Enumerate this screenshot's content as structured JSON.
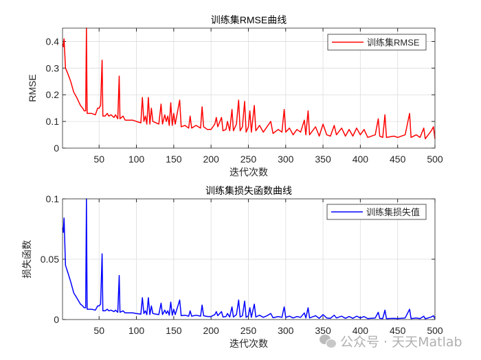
{
  "chart_data": [
    {
      "type": "line",
      "title": "训练集RMSE曲线",
      "xlabel": "迭代次数",
      "ylabel": "RMSE",
      "xlim": [
        1,
        500
      ],
      "ylim": [
        0,
        0.45
      ],
      "xticks": [
        50,
        100,
        150,
        200,
        250,
        300,
        350,
        400,
        450,
        500
      ],
      "yticks": [
        0,
        0.1,
        0.2,
        0.3,
        0.4
      ],
      "ytick_labels": [
        "0",
        "0.1",
        "0.2",
        "0.3",
        "0.4"
      ],
      "grid": true,
      "legend": "top-right",
      "series": [
        {
          "name": "训练集RMSE",
          "color": "#ff0000",
          "x": [
            1,
            2,
            3,
            5,
            8,
            12,
            16,
            20,
            25,
            28,
            30,
            32,
            33,
            34,
            36,
            40,
            45,
            48,
            50,
            52,
            54,
            55,
            58,
            61,
            63,
            66,
            70,
            72,
            75,
            77,
            78,
            82,
            85,
            95,
            100,
            106,
            108,
            110,
            112,
            114,
            116,
            118,
            120,
            122,
            126,
            130,
            133,
            135,
            138,
            140,
            142,
            144,
            146,
            148,
            150,
            152,
            158,
            160,
            165,
            170,
            172,
            174,
            180,
            186,
            188,
            190,
            195,
            200,
            205,
            207,
            209,
            214,
            216,
            220,
            222,
            225,
            228,
            230,
            234,
            237,
            239,
            242,
            245,
            247,
            250,
            252,
            254,
            258,
            260,
            265,
            270,
            275,
            280,
            283,
            290,
            295,
            298,
            300,
            305,
            310,
            315,
            320,
            325,
            327,
            330,
            332,
            340,
            345,
            350,
            355,
            360,
            365,
            368,
            375,
            380,
            385,
            390,
            395,
            400,
            405,
            410,
            420,
            424,
            426,
            430,
            433,
            435,
            445,
            450,
            460,
            466,
            468,
            475,
            480,
            485,
            487,
            495,
            498,
            500
          ],
          "y": [
            0.39,
            0.38,
            0.41,
            0.3,
            0.28,
            0.25,
            0.21,
            0.19,
            0.16,
            0.15,
            0.14,
            0.14,
            0.45,
            0.13,
            0.13,
            0.13,
            0.125,
            0.15,
            0.15,
            0.16,
            0.33,
            0.12,
            0.12,
            0.13,
            0.12,
            0.125,
            0.115,
            0.125,
            0.11,
            0.27,
            0.11,
            0.12,
            0.105,
            0.105,
            0.1,
            0.095,
            0.19,
            0.1,
            0.12,
            0.09,
            0.19,
            0.09,
            0.15,
            0.1,
            0.095,
            0.09,
            0.165,
            0.09,
            0.125,
            0.1,
            0.12,
            0.085,
            0.17,
            0.085,
            0.13,
            0.09,
            0.18,
            0.08,
            0.085,
            0.075,
            0.12,
            0.075,
            0.085,
            0.075,
            0.155,
            0.08,
            0.07,
            0.07,
            0.09,
            0.115,
            0.08,
            0.115,
            0.065,
            0.07,
            0.1,
            0.065,
            0.145,
            0.065,
            0.09,
            0.18,
            0.065,
            0.08,
            0.175,
            0.06,
            0.08,
            0.14,
            0.06,
            0.16,
            0.065,
            0.085,
            0.06,
            0.08,
            0.1,
            0.055,
            0.07,
            0.06,
            0.145,
            0.06,
            0.075,
            0.05,
            0.07,
            0.06,
            0.105,
            0.05,
            0.14,
            0.05,
            0.08,
            0.045,
            0.09,
            0.05,
            0.045,
            0.085,
            0.05,
            0.075,
            0.045,
            0.07,
            0.045,
            0.075,
            0.05,
            0.07,
            0.04,
            0.05,
            0.11,
            0.045,
            0.04,
            0.125,
            0.04,
            0.045,
            0.04,
            0.05,
            0.13,
            0.04,
            0.05,
            0.04,
            0.075,
            0.035,
            0.065,
            0.08,
            0.035
          ]
        }
      ]
    },
    {
      "type": "line",
      "title": "训练集损失函数曲线",
      "xlabel": "迭代次数",
      "ylabel": "损失函数",
      "xlim": [
        1,
        500
      ],
      "ylim": [
        0,
        0.1
      ],
      "xticks": [
        50,
        100,
        150,
        200,
        250,
        300,
        350,
        400,
        450,
        500
      ],
      "yticks": [
        0,
        0.05,
        0.1
      ],
      "ytick_labels": [
        "0",
        "0.05",
        "0.1"
      ],
      "grid": true,
      "legend": "top-right",
      "series": [
        {
          "name": "训练集损失值",
          "color": "#0000ff",
          "x": [
            1,
            2,
            3,
            5,
            8,
            12,
            16,
            20,
            25,
            28,
            30,
            32,
            33,
            34,
            36,
            40,
            45,
            48,
            50,
            52,
            54,
            55,
            58,
            61,
            63,
            66,
            70,
            72,
            75,
            77,
            78,
            82,
            85,
            95,
            100,
            106,
            108,
            110,
            112,
            114,
            116,
            118,
            120,
            122,
            126,
            130,
            133,
            135,
            138,
            140,
            142,
            144,
            146,
            148,
            150,
            152,
            158,
            160,
            165,
            170,
            172,
            174,
            180,
            186,
            188,
            190,
            195,
            200,
            205,
            207,
            209,
            214,
            216,
            220,
            222,
            225,
            228,
            230,
            234,
            237,
            239,
            242,
            245,
            247,
            250,
            252,
            254,
            258,
            260,
            265,
            270,
            275,
            280,
            283,
            290,
            295,
            298,
            300,
            305,
            310,
            315,
            320,
            325,
            327,
            330,
            332,
            340,
            345,
            350,
            355,
            360,
            365,
            368,
            375,
            380,
            385,
            390,
            395,
            400,
            405,
            410,
            420,
            424,
            426,
            430,
            433,
            435,
            445,
            450,
            460,
            466,
            468,
            475,
            480,
            485,
            487,
            495,
            498,
            500
          ],
          "y": [
            0.0761,
            0.0722,
            0.0841,
            0.045,
            0.0392,
            0.0313,
            0.0221,
            0.0181,
            0.0128,
            0.0113,
            0.0098,
            0.0098,
            0.1,
            0.0085,
            0.0085,
            0.0085,
            0.0078,
            0.0113,
            0.0113,
            0.0128,
            0.0545,
            0.0072,
            0.0072,
            0.0085,
            0.0072,
            0.0078,
            0.0066,
            0.0078,
            0.006,
            0.0365,
            0.006,
            0.0072,
            0.0055,
            0.0055,
            0.005,
            0.0045,
            0.0181,
            0.005,
            0.0072,
            0.0041,
            0.0181,
            0.0041,
            0.0113,
            0.005,
            0.0045,
            0.0041,
            0.0136,
            0.0041,
            0.0078,
            0.005,
            0.0072,
            0.0036,
            0.0145,
            0.0036,
            0.0085,
            0.0041,
            0.0162,
            0.0032,
            0.0036,
            0.0028,
            0.0072,
            0.0028,
            0.0036,
            0.0028,
            0.012,
            0.0032,
            0.0025,
            0.0025,
            0.0041,
            0.0066,
            0.0032,
            0.0066,
            0.0021,
            0.0025,
            0.005,
            0.0021,
            0.0105,
            0.0021,
            0.0041,
            0.0162,
            0.0021,
            0.0032,
            0.0153,
            0.0018,
            0.0032,
            0.0098,
            0.0018,
            0.0128,
            0.0021,
            0.0036,
            0.0018,
            0.0032,
            0.005,
            0.0015,
            0.0025,
            0.0018,
            0.0105,
            0.0018,
            0.0028,
            0.0013,
            0.0025,
            0.0018,
            0.0055,
            0.0013,
            0.0098,
            0.0013,
            0.0032,
            0.001,
            0.0041,
            0.0013,
            0.001,
            0.0036,
            0.0013,
            0.0028,
            0.001,
            0.0025,
            0.001,
            0.0028,
            0.0013,
            0.0025,
            0.0008,
            0.0013,
            0.006,
            0.001,
            0.0008,
            0.0078,
            0.0008,
            0.001,
            0.0008,
            0.0013,
            0.0085,
            0.0008,
            0.0013,
            0.0008,
            0.0028,
            0.0006,
            0.0021,
            0.0032,
            0.0006
          ]
        }
      ]
    }
  ],
  "watermark": {
    "text": "公众号 · 天天Matlab",
    "icon": "wechat-icon"
  }
}
